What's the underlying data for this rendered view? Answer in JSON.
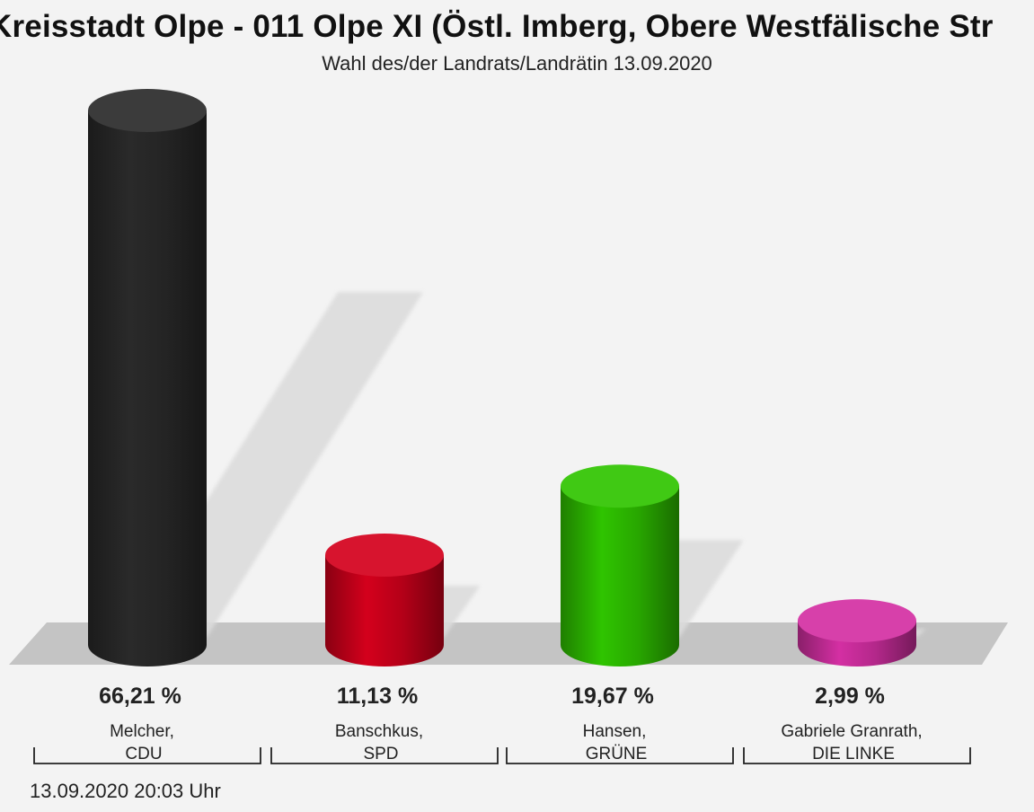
{
  "chart_data": {
    "type": "bar",
    "title": "Kreisstadt Olpe - 011 Olpe XI (Östl. Imberg, Obere Westfälische Str",
    "subtitle": "Wahl des/der Landrats/Landrätin 13.09.2020",
    "categories": [
      {
        "name": "Melcher,",
        "party": "CDU"
      },
      {
        "name": "Banschkus,",
        "party": "SPD"
      },
      {
        "name": "Hansen,",
        "party": "GRÜNE"
      },
      {
        "name": "Gabriele Granrath,",
        "party": "DIE LINKE"
      }
    ],
    "values": [
      66.21,
      11.13,
      19.67,
      2.99
    ],
    "value_labels": [
      "66,21 %",
      "11,13 %",
      "19,67 %",
      "2,99 %"
    ],
    "colors": [
      "#2a2a2a",
      "#d4001c",
      "#2fc400",
      "#d42fa3"
    ],
    "ylim": [
      0,
      70
    ]
  },
  "footer": {
    "timestamp": "13.09.2020 20:03 Uhr"
  }
}
